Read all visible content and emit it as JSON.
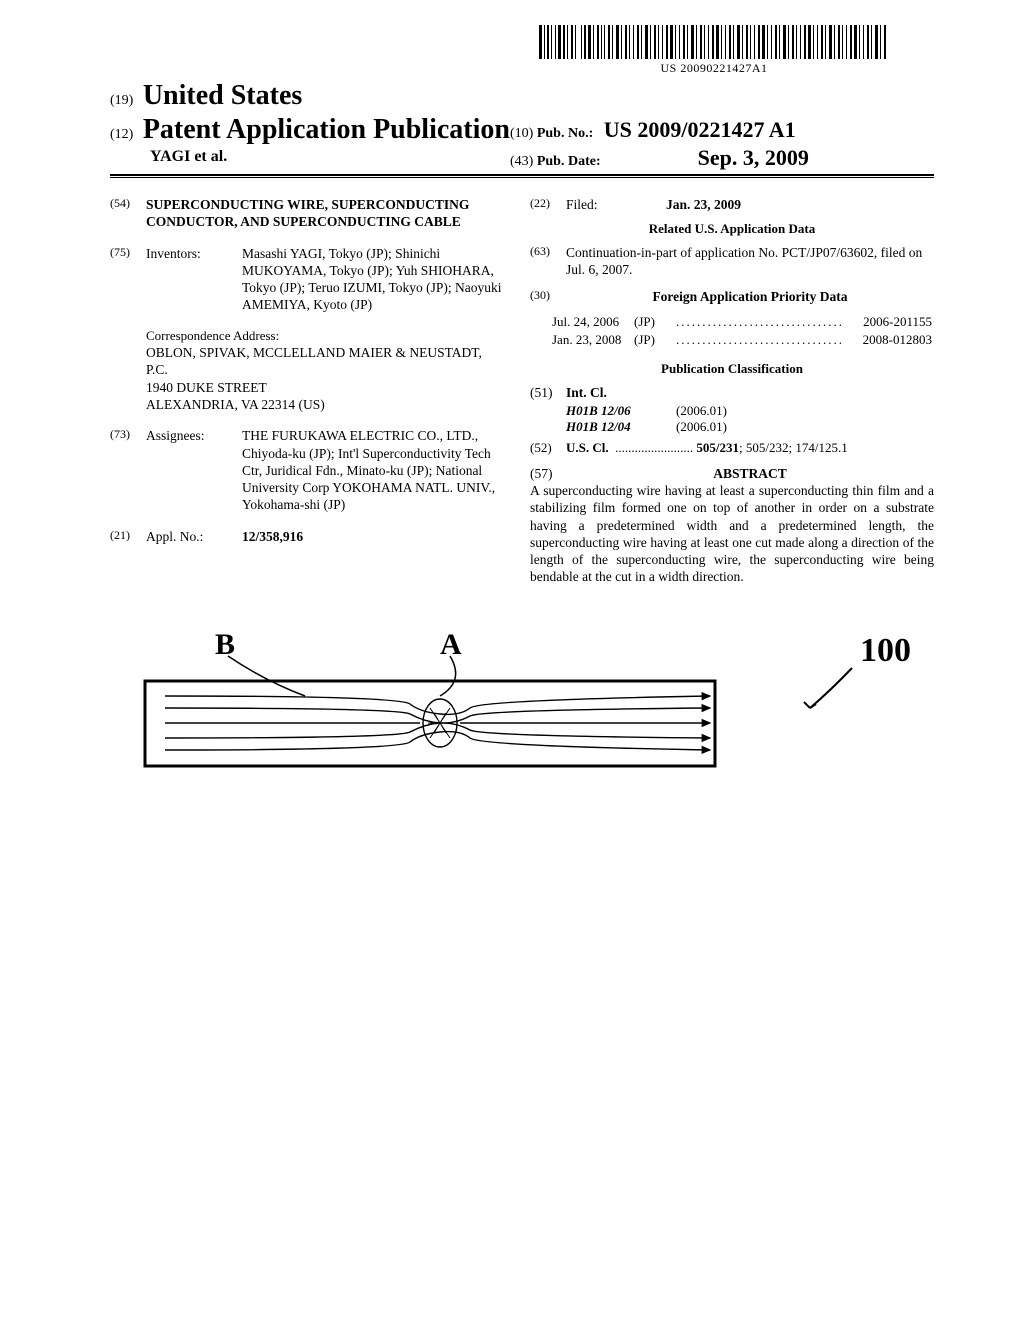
{
  "barcode_text": "US 20090221427A1",
  "header": {
    "code19": "(19)",
    "country": "United States",
    "code12": "(12)",
    "pubtype": "Patent Application Publication",
    "authors": "YAGI et al."
  },
  "pubmeta": {
    "code10": "(10)",
    "pubno_lbl": "Pub. No.:",
    "pubno_val": "US 2009/0221427 A1",
    "code43": "(43)",
    "pubdate_lbl": "Pub. Date:",
    "pubdate_val": "Sep. 3, 2009"
  },
  "left": {
    "title_code": "(54)",
    "title": "SUPERCONDUCTING WIRE, SUPERCONDUCTING CONDUCTOR, AND SUPERCONDUCTING CABLE",
    "inventors_code": "(75)",
    "inventors_lbl": "Inventors:",
    "inventors_val": "Masashi YAGI, Tokyo (JP); Shinichi MUKOYAMA, Tokyo (JP); Yuh SHIOHARA, Tokyo (JP); Teruo IZUMI, Tokyo (JP); Naoyuki AMEMIYA, Kyoto (JP)",
    "corr_hdr": "Correspondence Address:",
    "corr_l1": "OBLON, SPIVAK, MCCLELLAND MAIER & NEUSTADT, P.C.",
    "corr_l2": "1940 DUKE STREET",
    "corr_l3": "ALEXANDRIA, VA 22314 (US)",
    "assignees_code": "(73)",
    "assignees_lbl": "Assignees:",
    "assignees_val": "THE FURUKAWA ELECTRIC CO., LTD., Chiyoda-ku (JP); Int'l Superconductivity Tech Ctr, Juridical Fdn., Minato-ku (JP); National University Corp YOKOHAMA NATL. UNIV., Yokohama-shi (JP)",
    "applno_code": "(21)",
    "applno_lbl": "Appl. No.:",
    "applno_val": "12/358,916"
  },
  "right": {
    "filed_code": "(22)",
    "filed_lbl": "Filed:",
    "filed_val": "Jan. 23, 2009",
    "related_hdr": "Related U.S. Application Data",
    "cip_code": "(63)",
    "cip_val": "Continuation-in-part of application No. PCT/JP07/63602, filed on Jul. 6, 2007.",
    "foreign_code": "(30)",
    "foreign_hdr": "Foreign Application Priority Data",
    "priority": [
      {
        "date": "Jul. 24, 2006",
        "cc": "(JP)",
        "num": "2006-201155"
      },
      {
        "date": "Jan. 23, 2008",
        "cc": "(JP)",
        "num": "2008-012803"
      }
    ],
    "pubclass_hdr": "Publication Classification",
    "intcl_code": "(51)",
    "intcl_lbl": "Int. Cl.",
    "intcl": [
      {
        "code": "H01B 12/06",
        "ver": "(2006.01)"
      },
      {
        "code": "H01B 12/04",
        "ver": "(2006.01)"
      }
    ],
    "uscl_code": "(52)",
    "uscl_lbl": "U.S. Cl.",
    "uscl_val": "505/231; 505/232; 174/125.1",
    "abstract_code": "(57)",
    "abstract_hdr": "ABSTRACT",
    "abstract_text": "A superconducting wire having at least a superconducting thin film and a stabilizing film formed one on top of another in order on a substrate having a predetermined width and a predetermined length, the superconducting wire having at least one cut made along a direction of the length of the superconducting wire, the superconducting wire being bendable at the cut in a width direction."
  },
  "figure": {
    "label_A": "A",
    "label_B": "B",
    "label_100": "100",
    "colors": {
      "stroke": "#000000",
      "bg": "#ffffff"
    }
  }
}
